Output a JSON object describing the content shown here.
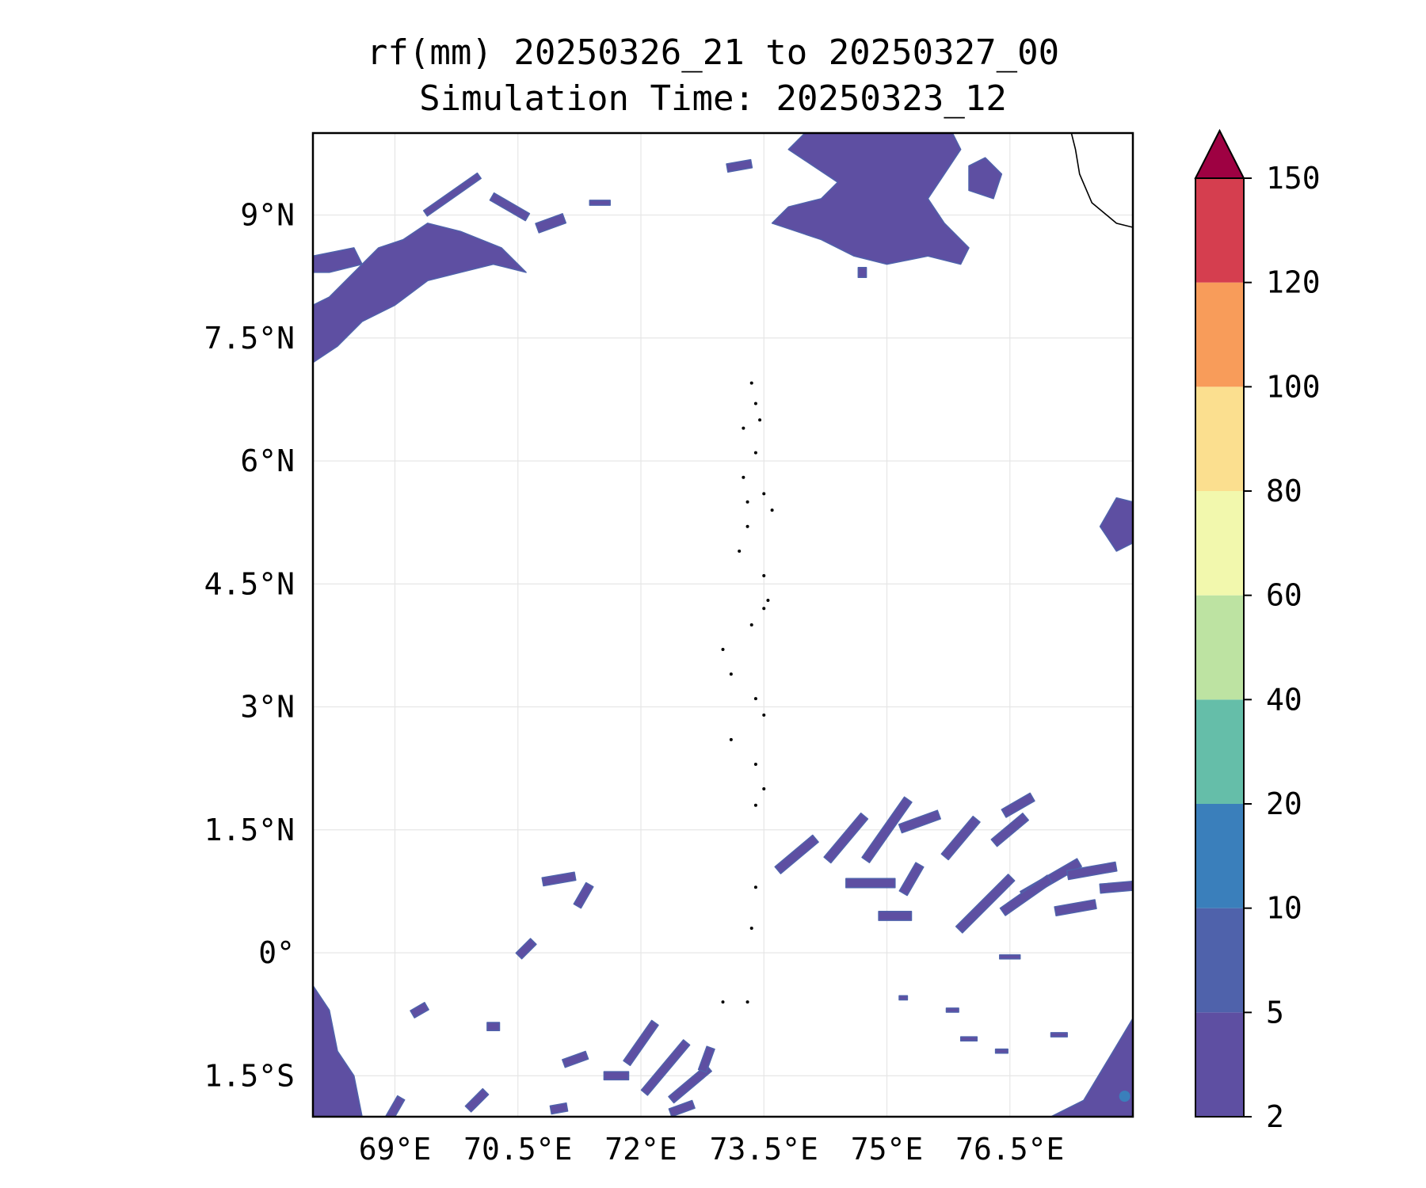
{
  "chart_data": {
    "type": "filled-contour-map",
    "title": "rf(mm) 20250326_21 to 20250327_00",
    "subtitle": "Simulation Time: 20250323_12",
    "xlim": [
      68.0,
      78.0
    ],
    "ylim": [
      -2.0,
      10.0
    ],
    "x_ticks": [
      69,
      70.5,
      72,
      73.5,
      75,
      76.5
    ],
    "x_tick_labels": [
      "69°E",
      "70.5°E",
      "72°E",
      "73.5°E",
      "75°E",
      "76.5°E"
    ],
    "y_ticks": [
      9,
      7.5,
      6,
      4.5,
      3,
      1.5,
      0,
      -1.5
    ],
    "y_tick_labels": [
      "9°N",
      "7.5°N",
      "6°N",
      "4.5°N",
      "3°N",
      "1.5°N",
      "0°",
      "1.5°S"
    ],
    "grid": true,
    "colorbar": {
      "levels": [
        2,
        5,
        10,
        20,
        40,
        60,
        80,
        100,
        120,
        150
      ],
      "labels": [
        "2",
        "5",
        "10",
        "20",
        "40",
        "60",
        "80",
        "100",
        "120",
        "150"
      ],
      "colors": [
        "#5e4fa2",
        "#4f62ab",
        "#3a7fbb",
        "#65bea9",
        "#bde3a2",
        "#f2f8ad",
        "#fbdf8f",
        "#f89c5a",
        "#d53e4f"
      ],
      "extend_color": "#9e0142",
      "extend": "max"
    },
    "rain_areas": [
      {
        "region": "northwest",
        "lon": [
          68,
          71.5
        ],
        "lat": [
          7.2,
          9.5
        ],
        "class_mm": "2-10"
      },
      {
        "region": "north-central",
        "lon": [
          73.5,
          76.0
        ],
        "lat": [
          8.3,
          10.0
        ],
        "class_mm": "2-10"
      },
      {
        "region": "east-edge",
        "lon": [
          77.6,
          78.0
        ],
        "lat": [
          4.9,
          5.6
        ],
        "class_mm": "2-10"
      },
      {
        "region": "equatorial-band",
        "lon": [
          73.5,
          78.0
        ],
        "lat": [
          0.4,
          2.2
        ],
        "class_mm": "2-10"
      },
      {
        "region": "southwest",
        "lon": [
          68,
          73.0
        ],
        "lat": [
          -2.0,
          1.4
        ],
        "class_mm": "2-10"
      },
      {
        "region": "southeast",
        "lon": [
          76.3,
          78.0
        ],
        "lat": [
          -2.0,
          -0.6
        ],
        "class_mm": "2-20"
      }
    ],
    "coastlines": [
      "India (southern tip)",
      "Maldives atolls"
    ]
  }
}
